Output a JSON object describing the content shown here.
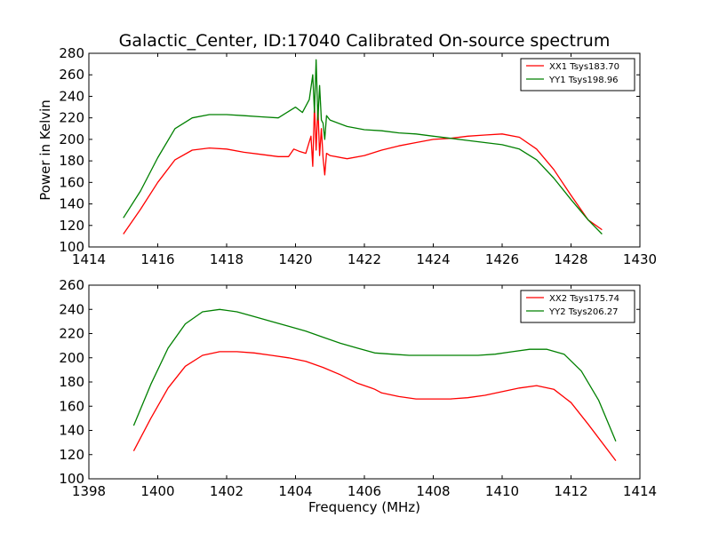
{
  "chart_data": [
    {
      "type": "line",
      "title": "Galactic_Center, ID:17040 Calibrated On-source spectrum",
      "xlabel": "",
      "ylabel": "Power in Kelvin",
      "xlim": [
        1414,
        1430
      ],
      "ylim": [
        100,
        280
      ],
      "xticks": [
        1414,
        1416,
        1418,
        1420,
        1422,
        1424,
        1426,
        1428,
        1430
      ],
      "yticks": [
        100,
        120,
        140,
        160,
        180,
        200,
        220,
        240,
        260,
        280
      ],
      "grid": false,
      "legend_position": "top-right",
      "colors": {
        "XX1 Tsys183.70": "#ff0000",
        "YY1 Tsys198.96": "#008000"
      },
      "series": [
        {
          "name": "XX1 Tsys183.70",
          "color": "#ff0000",
          "x": [
            1415.0,
            1415.5,
            1416.0,
            1416.5,
            1417.0,
            1417.5,
            1418.0,
            1418.5,
            1419.0,
            1419.5,
            1419.8,
            1419.95,
            1420.1,
            1420.3,
            1420.45,
            1420.5,
            1420.55,
            1420.6,
            1420.65,
            1420.7,
            1420.75,
            1420.8,
            1420.85,
            1420.9,
            1421.0,
            1421.5,
            1422.0,
            1422.5,
            1423.0,
            1423.5,
            1424.0,
            1424.5,
            1425.0,
            1425.5,
            1426.0,
            1426.5,
            1427.0,
            1427.5,
            1428.0,
            1428.5,
            1428.9
          ],
          "y": [
            112,
            135,
            160,
            181,
            190,
            192,
            191,
            188,
            186,
            184,
            184,
            191,
            189,
            187,
            203,
            175,
            232,
            190,
            231,
            185,
            210,
            183,
            167,
            187,
            185,
            182,
            185,
            190,
            194,
            197,
            200,
            201,
            203,
            204,
            205,
            202,
            191,
            172,
            148,
            125,
            116
          ]
        },
        {
          "name": "YY1 Tsys198.96",
          "color": "#008000",
          "x": [
            1415.0,
            1415.5,
            1416.0,
            1416.5,
            1417.0,
            1417.5,
            1418.0,
            1418.5,
            1419.0,
            1419.5,
            1419.8,
            1420.0,
            1420.2,
            1420.4,
            1420.5,
            1420.55,
            1420.6,
            1420.65,
            1420.7,
            1420.75,
            1420.8,
            1420.85,
            1420.9,
            1421.0,
            1421.5,
            1422.0,
            1422.5,
            1423.0,
            1423.5,
            1424.0,
            1424.5,
            1425.0,
            1425.5,
            1426.0,
            1426.5,
            1427.0,
            1427.5,
            1428.0,
            1428.5,
            1428.9
          ],
          "y": [
            127,
            152,
            183,
            210,
            220,
            223,
            223,
            222,
            221,
            220,
            226,
            230,
            225,
            237,
            260,
            225,
            274,
            218,
            250,
            218,
            215,
            200,
            222,
            218,
            212,
            209,
            208,
            206,
            205,
            203,
            201,
            199,
            197,
            195,
            191,
            181,
            164,
            144,
            125,
            112
          ]
        }
      ]
    },
    {
      "type": "line",
      "title": "",
      "xlabel": "Frequency (MHz)",
      "ylabel": "",
      "xlim": [
        1398,
        1414
      ],
      "ylim": [
        100,
        260
      ],
      "xticks": [
        1398,
        1400,
        1402,
        1404,
        1406,
        1408,
        1410,
        1412,
        1414
      ],
      "yticks": [
        100,
        120,
        140,
        160,
        180,
        200,
        220,
        240,
        260
      ],
      "grid": false,
      "legend_position": "top-right",
      "colors": {
        "XX2 Tsys175.74": "#ff0000",
        "YY2 Tsys206.27": "#008000"
      },
      "series": [
        {
          "name": "XX2 Tsys175.74",
          "color": "#ff0000",
          "x": [
            1399.3,
            1399.8,
            1400.3,
            1400.8,
            1401.3,
            1401.8,
            1402.3,
            1402.8,
            1403.3,
            1403.8,
            1404.3,
            1404.8,
            1405.3,
            1405.8,
            1406.2,
            1406.3,
            1406.5,
            1407.0,
            1407.5,
            1408.0,
            1408.5,
            1409.0,
            1409.5,
            1410.0,
            1410.5,
            1411.0,
            1411.5,
            1412.0,
            1412.5,
            1413.3
          ],
          "y": [
            123,
            150,
            175,
            193,
            202,
            205,
            205,
            204,
            202,
            200,
            197,
            192,
            186,
            179,
            175,
            174,
            171,
            168,
            166,
            166,
            166,
            167,
            169,
            172,
            175,
            177,
            174,
            163,
            145,
            115
          ]
        },
        {
          "name": "YY2 Tsys206.27",
          "color": "#008000",
          "x": [
            1399.3,
            1399.8,
            1400.3,
            1400.8,
            1401.3,
            1401.8,
            1402.3,
            1402.8,
            1403.3,
            1403.8,
            1404.3,
            1404.8,
            1405.3,
            1405.8,
            1406.3,
            1406.8,
            1407.3,
            1407.8,
            1408.3,
            1408.8,
            1409.3,
            1409.8,
            1410.3,
            1410.8,
            1411.3,
            1411.8,
            1412.3,
            1412.8,
            1413.3
          ],
          "y": [
            144,
            178,
            208,
            228,
            238,
            240,
            238,
            234,
            230,
            226,
            222,
            217,
            212,
            208,
            204,
            203,
            202,
            202,
            202,
            202,
            202,
            203,
            205,
            207,
            207,
            203,
            189,
            165,
            131
          ]
        }
      ]
    }
  ]
}
